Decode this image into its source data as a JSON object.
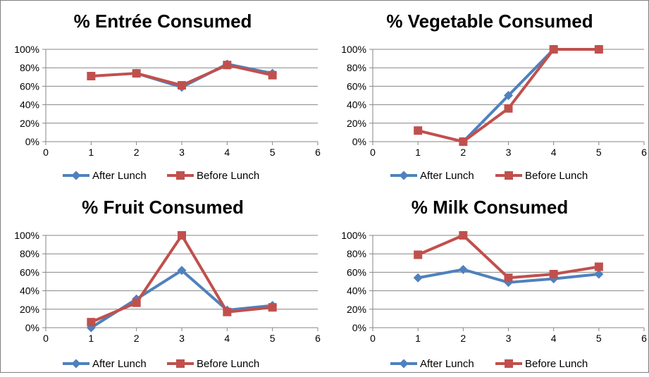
{
  "chart_data": [
    {
      "type": "line",
      "title": "% Entrée Consumed",
      "xlabel": "",
      "ylabel": "",
      "xlim": [
        0,
        6
      ],
      "ylim": [
        0,
        100
      ],
      "x_ticks": [
        "0",
        "1",
        "2",
        "3",
        "4",
        "5",
        "6"
      ],
      "y_ticks": [
        "0%",
        "20%",
        "40%",
        "60%",
        "80%",
        "100%"
      ],
      "grid": "horizontal",
      "legend": "bottom",
      "x": [
        1,
        2,
        3,
        4,
        5
      ],
      "series": [
        {
          "name": "After Lunch",
          "color": "#4F81BD",
          "marker": "diamond",
          "values": [
            null,
            74,
            59,
            84,
            74
          ]
        },
        {
          "name": "Before Lunch",
          "color": "#C0504D",
          "marker": "square",
          "values": [
            71,
            74,
            61,
            83,
            72
          ]
        }
      ]
    },
    {
      "type": "line",
      "title": "% Vegetable Consumed",
      "xlabel": "",
      "ylabel": "",
      "xlim": [
        0,
        6
      ],
      "ylim": [
        0,
        100
      ],
      "x_ticks": [
        "0",
        "1",
        "2",
        "3",
        "4",
        "5",
        "6"
      ],
      "y_ticks": [
        "0%",
        "20%",
        "40%",
        "60%",
        "80%",
        "100%"
      ],
      "grid": "horizontal",
      "legend": "bottom",
      "x": [
        1,
        2,
        3,
        4,
        5
      ],
      "series": [
        {
          "name": "After Lunch",
          "color": "#4F81BD",
          "marker": "diamond",
          "values": [
            null,
            0,
            50,
            100,
            100
          ]
        },
        {
          "name": "Before Lunch",
          "color": "#C0504D",
          "marker": "square",
          "values": [
            12,
            0,
            36,
            100,
            100
          ]
        }
      ]
    },
    {
      "type": "line",
      "title": "% Fruit Consumed",
      "xlabel": "",
      "ylabel": "",
      "xlim": [
        0,
        6
      ],
      "ylim": [
        0,
        100
      ],
      "x_ticks": [
        "0",
        "1",
        "2",
        "3",
        "4",
        "5",
        "6"
      ],
      "y_ticks": [
        "0%",
        "20%",
        "40%",
        "60%",
        "80%",
        "100%"
      ],
      "grid": "horizontal",
      "legend": "bottom",
      "x": [
        1,
        2,
        3,
        4,
        5
      ],
      "series": [
        {
          "name": "After Lunch",
          "color": "#4F81BD",
          "marker": "diamond",
          "values": [
            0,
            31,
            62,
            19,
            24
          ]
        },
        {
          "name": "Before Lunch",
          "color": "#C0504D",
          "marker": "square",
          "values": [
            6,
            27,
            100,
            17,
            22
          ]
        }
      ]
    },
    {
      "type": "line",
      "title": "% Milk Consumed",
      "xlabel": "",
      "ylabel": "",
      "xlim": [
        0,
        6
      ],
      "ylim": [
        0,
        100
      ],
      "x_ticks": [
        "0",
        "1",
        "2",
        "3",
        "4",
        "5",
        "6"
      ],
      "y_ticks": [
        "0%",
        "20%",
        "40%",
        "60%",
        "80%",
        "100%"
      ],
      "grid": "horizontal",
      "legend": "bottom",
      "x": [
        1,
        2,
        3,
        4,
        5
      ],
      "series": [
        {
          "name": "After Lunch",
          "color": "#4F81BD",
          "marker": "diamond",
          "values": [
            54,
            63,
            49,
            53,
            58
          ]
        },
        {
          "name": "Before Lunch",
          "color": "#C0504D",
          "marker": "square",
          "values": [
            79,
            100,
            54,
            58,
            66
          ]
        }
      ]
    }
  ]
}
